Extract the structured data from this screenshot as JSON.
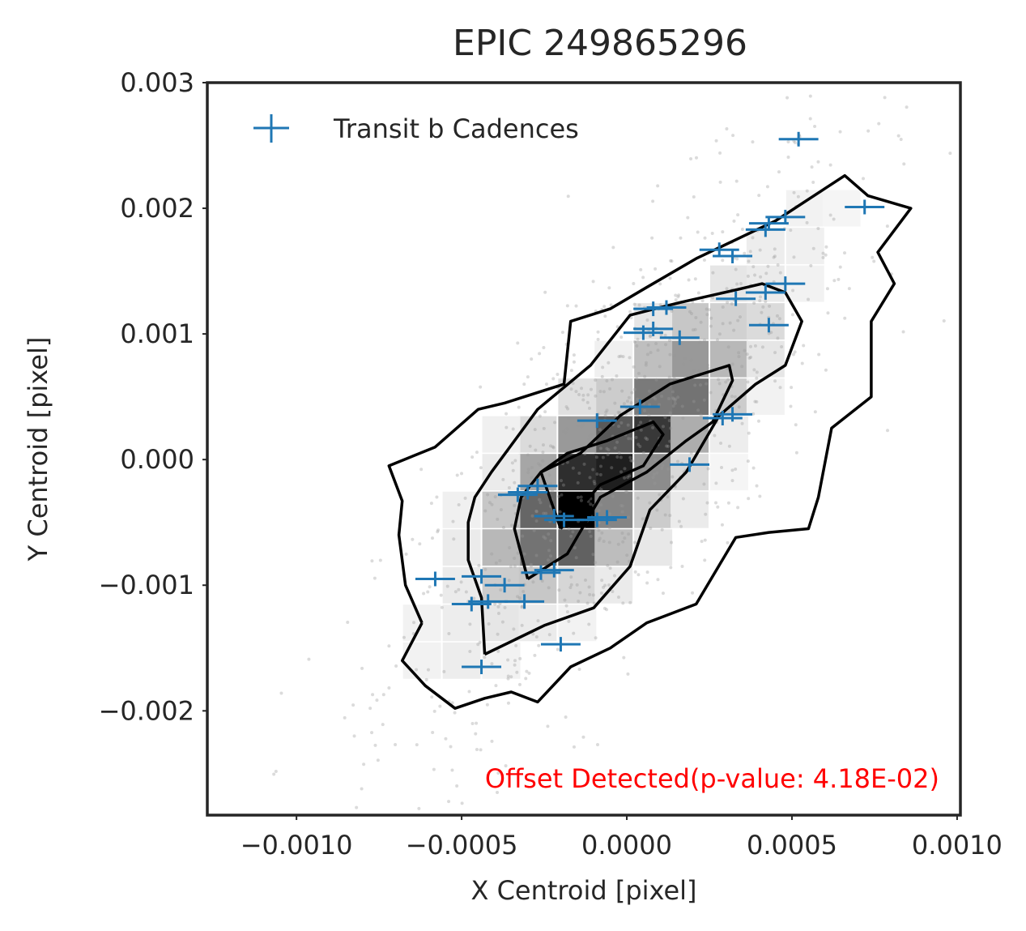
{
  "chart_data": {
    "type": "scatter",
    "title": "EPIC 249865296",
    "xlabel": "X Centroid [pixel]",
    "ylabel": "Y Centroid [pixel]",
    "xlim": [
      -0.00127,
      0.00101
    ],
    "ylim": [
      -0.00283,
      0.003
    ],
    "x_ticks": [
      {
        "value": -0.001,
        "label": "−0.0010"
      },
      {
        "value": -0.0005,
        "label": "−0.0005"
      },
      {
        "value": 0.0,
        "label": "0.0000"
      },
      {
        "value": 0.0005,
        "label": "0.0005"
      },
      {
        "value": 0.001,
        "label": "0.0010"
      }
    ],
    "y_ticks": [
      {
        "value": 0.003,
        "label": "0.003"
      },
      {
        "value": 0.002,
        "label": "0.002"
      },
      {
        "value": 0.001,
        "label": "0.001"
      },
      {
        "value": 0.0,
        "label": "0.000"
      },
      {
        "value": -0.001,
        "label": "−0.001"
      },
      {
        "value": -0.002,
        "label": "−0.002"
      }
    ],
    "grid": false,
    "legend": {
      "position": "top-left",
      "entries": [
        "Transit b Cadences"
      ]
    },
    "annotation": {
      "text": "Offset Detected(p-value: 4.18E-02)",
      "color": "#ff0000",
      "position": "bottom-right"
    },
    "colors": {
      "transit": "#1f77b4",
      "contour": "#000000",
      "background_points": "#999999",
      "axes": "#262626"
    },
    "histogram": {
      "bin_width_x": 0.000115,
      "bin_height_y": 0.00029,
      "cells": [
        {
          "x": -0.00015,
          "y": -0.0004,
          "v": 1.0
        },
        {
          "x": -4e-05,
          "y": -0.0001,
          "v": 0.88
        },
        {
          "x": 8e-05,
          "y": 0.0002,
          "v": 0.78
        },
        {
          "x": -0.00015,
          "y": -0.0001,
          "v": 0.82
        },
        {
          "x": -4e-05,
          "y": 0.0002,
          "v": 0.65
        },
        {
          "x": 0.00019,
          "y": 0.0005,
          "v": 0.55
        },
        {
          "x": 8e-05,
          "y": 0.0005,
          "v": 0.52
        },
        {
          "x": -0.00027,
          "y": -0.0004,
          "v": 0.6
        },
        {
          "x": -0.00027,
          "y": -0.0007,
          "v": 0.55
        },
        {
          "x": -0.00015,
          "y": -0.0007,
          "v": 0.62
        },
        {
          "x": -4e-05,
          "y": -0.0004,
          "v": 0.48
        },
        {
          "x": -0.00015,
          "y": 0.0002,
          "v": 0.4
        },
        {
          "x": -0.00027,
          "y": -0.0001,
          "v": 0.35
        },
        {
          "x": 8e-05,
          "y": -0.0001,
          "v": 0.45
        },
        {
          "x": 0.00019,
          "y": 0.0008,
          "v": 0.4
        },
        {
          "x": 0.00031,
          "y": 0.0008,
          "v": 0.28
        },
        {
          "x": 0.00019,
          "y": 0.0002,
          "v": 0.32
        },
        {
          "x": 8e-05,
          "y": 0.0008,
          "v": 0.25
        },
        {
          "x": 0.00019,
          "y": 0.0011,
          "v": 0.22
        },
        {
          "x": -0.00038,
          "y": -0.0007,
          "v": 0.28
        },
        {
          "x": -0.00038,
          "y": -0.0004,
          "v": 0.22
        },
        {
          "x": -0.00038,
          "y": -0.001,
          "v": 0.2
        },
        {
          "x": -0.00027,
          "y": -0.001,
          "v": 0.22
        },
        {
          "x": -0.00015,
          "y": -0.001,
          "v": 0.16
        },
        {
          "x": -4e-05,
          "y": -0.0007,
          "v": 0.26
        },
        {
          "x": -4e-05,
          "y": 0.0005,
          "v": 0.2
        },
        {
          "x": -0.00015,
          "y": 0.0005,
          "v": 0.12
        },
        {
          "x": -0.00027,
          "y": 0.0002,
          "v": 0.14
        },
        {
          "x": 0.00031,
          "y": 0.0011,
          "v": 0.18
        },
        {
          "x": 0.00031,
          "y": 0.0005,
          "v": 0.2
        },
        {
          "x": 8e-05,
          "y": -0.0004,
          "v": 0.2
        },
        {
          "x": 0.00019,
          "y": -0.0001,
          "v": 0.15
        },
        {
          "x": 0.00042,
          "y": 0.0011,
          "v": 0.14
        },
        {
          "x": 0.00042,
          "y": 0.0008,
          "v": 0.1
        },
        {
          "x": 0.00031,
          "y": 0.0014,
          "v": 0.1
        },
        {
          "x": 0.00042,
          "y": 0.0014,
          "v": 0.08
        },
        {
          "x": 0.00054,
          "y": 0.0017,
          "v": 0.06
        },
        {
          "x": 0.00042,
          "y": 0.0017,
          "v": 0.07
        },
        {
          "x": -0.0005,
          "y": -0.001,
          "v": 0.08
        },
        {
          "x": -0.0005,
          "y": -0.0013,
          "v": 0.07
        },
        {
          "x": -0.00038,
          "y": -0.0013,
          "v": 0.1
        },
        {
          "x": -0.00027,
          "y": -0.0013,
          "v": 0.08
        },
        {
          "x": -0.0005,
          "y": -0.0007,
          "v": 0.08
        },
        {
          "x": -0.00038,
          "y": -0.0001,
          "v": 0.08
        },
        {
          "x": -0.0005,
          "y": -0.0004,
          "v": 0.06
        },
        {
          "x": -0.00038,
          "y": 0.0002,
          "v": 0.06
        },
        {
          "x": 0.00031,
          "y": 0.0002,
          "v": 0.07
        },
        {
          "x": 0.00019,
          "y": -0.0004,
          "v": 0.08
        },
        {
          "x": 8e-05,
          "y": -0.0007,
          "v": 0.09
        },
        {
          "x": -4e-05,
          "y": -0.001,
          "v": 0.08
        },
        {
          "x": -0.00062,
          "y": -0.0013,
          "v": 0.05
        },
        {
          "x": -0.00062,
          "y": -0.0016,
          "v": 0.05
        },
        {
          "x": -0.0005,
          "y": -0.0016,
          "v": 0.07
        },
        {
          "x": -0.00038,
          "y": -0.0016,
          "v": 0.05
        },
        {
          "x": 0.00054,
          "y": 0.002,
          "v": 0.05
        },
        {
          "x": 0.00065,
          "y": 0.002,
          "v": 0.04
        },
        {
          "x": 0.00054,
          "y": 0.0014,
          "v": 0.05
        },
        {
          "x": 8e-05,
          "y": 0.0011,
          "v": 0.1
        },
        {
          "x": -4e-05,
          "y": 0.0008,
          "v": 0.06
        },
        {
          "x": 0.00042,
          "y": 0.0005,
          "v": 0.05
        },
        {
          "x": 0.00031,
          "y": -0.0001,
          "v": 0.04
        },
        {
          "x": -0.00015,
          "y": -0.0013,
          "v": 0.05
        }
      ]
    },
    "contours": [
      {
        "level": "outer",
        "points": [
          [
            -0.00062,
            -0.0013
          ],
          [
            -0.00068,
            -0.0016
          ],
          [
            -0.00061,
            -0.0018
          ],
          [
            -0.00052,
            -0.00198
          ],
          [
            -0.00043,
            -0.0019
          ],
          [
            -0.00035,
            -0.00185
          ],
          [
            -0.00027,
            -0.00193
          ],
          [
            -0.00017,
            -0.00165
          ],
          [
            -5e-05,
            -0.0015
          ],
          [
            6e-05,
            -0.0013
          ],
          [
            0.00021,
            -0.00115
          ],
          [
            0.00033,
            -0.00062
          ],
          [
            0.00043,
            -0.00058
          ],
          [
            0.00055,
            -0.00055
          ],
          [
            0.00058,
            -0.0003
          ],
          [
            0.00062,
            0.00025
          ],
          [
            0.00074,
            0.0005
          ],
          [
            0.00074,
            0.0011
          ],
          [
            0.00081,
            0.0014
          ],
          [
            0.00076,
            0.00165
          ],
          [
            0.00086,
            0.002
          ],
          [
            0.00073,
            0.0021
          ],
          [
            0.00066,
            0.00226
          ],
          [
            0.00045,
            0.0019
          ],
          [
            0.00021,
            0.0016
          ],
          [
            6e-05,
            0.00137
          ],
          [
            -5e-05,
            0.0012
          ],
          [
            -0.00017,
            0.0011
          ],
          [
            -0.00019,
            0.0006
          ],
          [
            -0.00037,
            0.00045
          ],
          [
            -0.00045,
            0.0004
          ],
          [
            -0.00058,
            0.0001
          ],
          [
            -0.00072,
            -5e-05
          ],
          [
            -0.00068,
            -0.00033
          ],
          [
            -0.00069,
            -0.0006
          ],
          [
            -0.00067,
            -0.001
          ],
          [
            -0.00062,
            -0.0013
          ]
        ]
      },
      {
        "level": "middle",
        "points": [
          [
            -0.00043,
            -0.00155
          ],
          [
            -0.00044,
            -0.0011
          ],
          [
            -0.00048,
            -0.0008
          ],
          [
            -0.00048,
            -0.0005
          ],
          [
            -0.00046,
            -0.0003
          ],
          [
            -0.00041,
            -0.0001
          ],
          [
            -0.00027,
            0.0004
          ],
          [
            -0.00011,
            0.00075
          ],
          [
            1e-05,
            0.00115
          ],
          [
            0.00016,
            0.00125
          ],
          [
            0.00033,
            0.00135
          ],
          [
            0.00041,
            0.0014
          ],
          [
            0.00048,
            0.00133
          ],
          [
            0.00053,
            0.0011
          ],
          [
            0.00048,
            0.00075
          ],
          [
            0.00039,
            0.0006
          ],
          [
            0.00028,
            0.00035
          ],
          [
            0.00018,
            -0.0001
          ],
          [
            7e-05,
            -0.0004
          ],
          [
            1e-05,
            -0.00085
          ],
          [
            -0.0001,
            -0.00118
          ],
          [
            -0.00025,
            -0.00132
          ],
          [
            -0.00043,
            -0.00155
          ]
        ]
      },
      {
        "level": "inner",
        "points": [
          [
            -0.0003,
            -0.00095
          ],
          [
            -0.00034,
            -0.00055
          ],
          [
            -0.00032,
            -0.0003
          ],
          [
            -0.00026,
            -0.0001
          ],
          [
            -0.00014,
            5e-05
          ],
          [
            -2e-05,
            0.00035
          ],
          [
            0.00013,
            0.0006
          ],
          [
            0.00031,
            0.00075
          ],
          [
            0.00032,
            0.00063
          ],
          [
            0.00026,
            0.0003
          ],
          [
            0.00018,
            0.00015
          ],
          [
            6e-05,
            -0.0001
          ],
          [
            -8e-05,
            -0.0003
          ],
          [
            -0.00018,
            -0.00075
          ],
          [
            -0.0003,
            -0.00095
          ]
        ]
      },
      {
        "level": "innermost",
        "points": [
          [
            -0.0002,
            -0.00055
          ],
          [
            -0.00026,
            -0.0001
          ],
          [
            -0.00018,
            5e-05
          ],
          [
            -6e-05,
            0.00015
          ],
          [
            8e-05,
            0.0003
          ],
          [
            0.00011,
            0.0002
          ],
          [
            5e-05,
            -5e-05
          ],
          [
            -8e-05,
            -0.0002
          ],
          [
            -0.0002,
            -0.00055
          ]
        ]
      }
    ],
    "transit_points": [
      {
        "x": 0.00052,
        "y": 0.00255,
        "xerr": 6e-05
      },
      {
        "x": 0.00072,
        "y": 0.00201,
        "xerr": 6e-05
      },
      {
        "x": 0.00048,
        "y": 0.00193,
        "xerr": 6e-05
      },
      {
        "x": 0.00043,
        "y": 0.00188,
        "xerr": 6e-05
      },
      {
        "x": 0.00042,
        "y": 0.00183,
        "xerr": 6e-05
      },
      {
        "x": 0.00028,
        "y": 0.00167,
        "xerr": 6e-05
      },
      {
        "x": 0.00032,
        "y": 0.00162,
        "xerr": 6e-05
      },
      {
        "x": 0.00042,
        "y": 0.00133,
        "xerr": 6e-05
      },
      {
        "x": 0.00048,
        "y": 0.0014,
        "xerr": 6e-05
      },
      {
        "x": 0.00033,
        "y": 0.00128,
        "xerr": 6e-05
      },
      {
        "x": 0.00012,
        "y": 0.00121,
        "xerr": 6e-05
      },
      {
        "x": 8e-05,
        "y": 0.0012,
        "xerr": 6e-05
      },
      {
        "x": 0.00043,
        "y": 0.00107,
        "xerr": 6e-05
      },
      {
        "x": 8e-05,
        "y": 0.00104,
        "xerr": 6e-05
      },
      {
        "x": 5e-05,
        "y": 0.00101,
        "xerr": 6e-05
      },
      {
        "x": 0.00016,
        "y": 0.00097,
        "xerr": 6e-05
      },
      {
        "x": 4e-05,
        "y": 0.00042,
        "xerr": 6e-05
      },
      {
        "x": -9e-05,
        "y": 0.00031,
        "xerr": 6e-05
      },
      {
        "x": 0.00032,
        "y": 0.00036,
        "xerr": 6e-05
      },
      {
        "x": 0.00029,
        "y": 0.00033,
        "xerr": 6e-05
      },
      {
        "x": 0.00019,
        "y": -4e-05,
        "xerr": 6e-05
      },
      {
        "x": -0.0003,
        "y": -0.00026,
        "xerr": 6e-05
      },
      {
        "x": -0.00033,
        "y": -0.00028,
        "xerr": 6e-05
      },
      {
        "x": -0.00027,
        "y": -0.00021,
        "xerr": 6e-05
      },
      {
        "x": -0.00022,
        "y": -0.00045,
        "xerr": 6e-05
      },
      {
        "x": -0.00019,
        "y": -0.00048,
        "xerr": 6e-05
      },
      {
        "x": -6e-05,
        "y": -0.00046,
        "xerr": 6e-05
      },
      {
        "x": -9e-05,
        "y": -0.00048,
        "xerr": 6e-05
      },
      {
        "x": -0.00026,
        "y": -0.0009,
        "xerr": 6e-05
      },
      {
        "x": -0.00022,
        "y": -0.00088,
        "xerr": 6e-05
      },
      {
        "x": -0.00044,
        "y": -0.00093,
        "xerr": 6e-05
      },
      {
        "x": -0.00058,
        "y": -0.00095,
        "xerr": 6e-05
      },
      {
        "x": -0.00037,
        "y": -0.001,
        "xerr": 6e-05
      },
      {
        "x": -0.00042,
        "y": -0.00113,
        "xerr": 6e-05
      },
      {
        "x": -0.00047,
        "y": -0.00115,
        "xerr": 6e-05
      },
      {
        "x": -0.00031,
        "y": -0.00113,
        "xerr": 6e-05
      },
      {
        "x": -0.0002,
        "y": -0.00147,
        "xerr": 6e-05
      },
      {
        "x": -0.00044,
        "y": -0.00165,
        "xerr": 6e-05
      }
    ],
    "background_point_count": 900
  }
}
